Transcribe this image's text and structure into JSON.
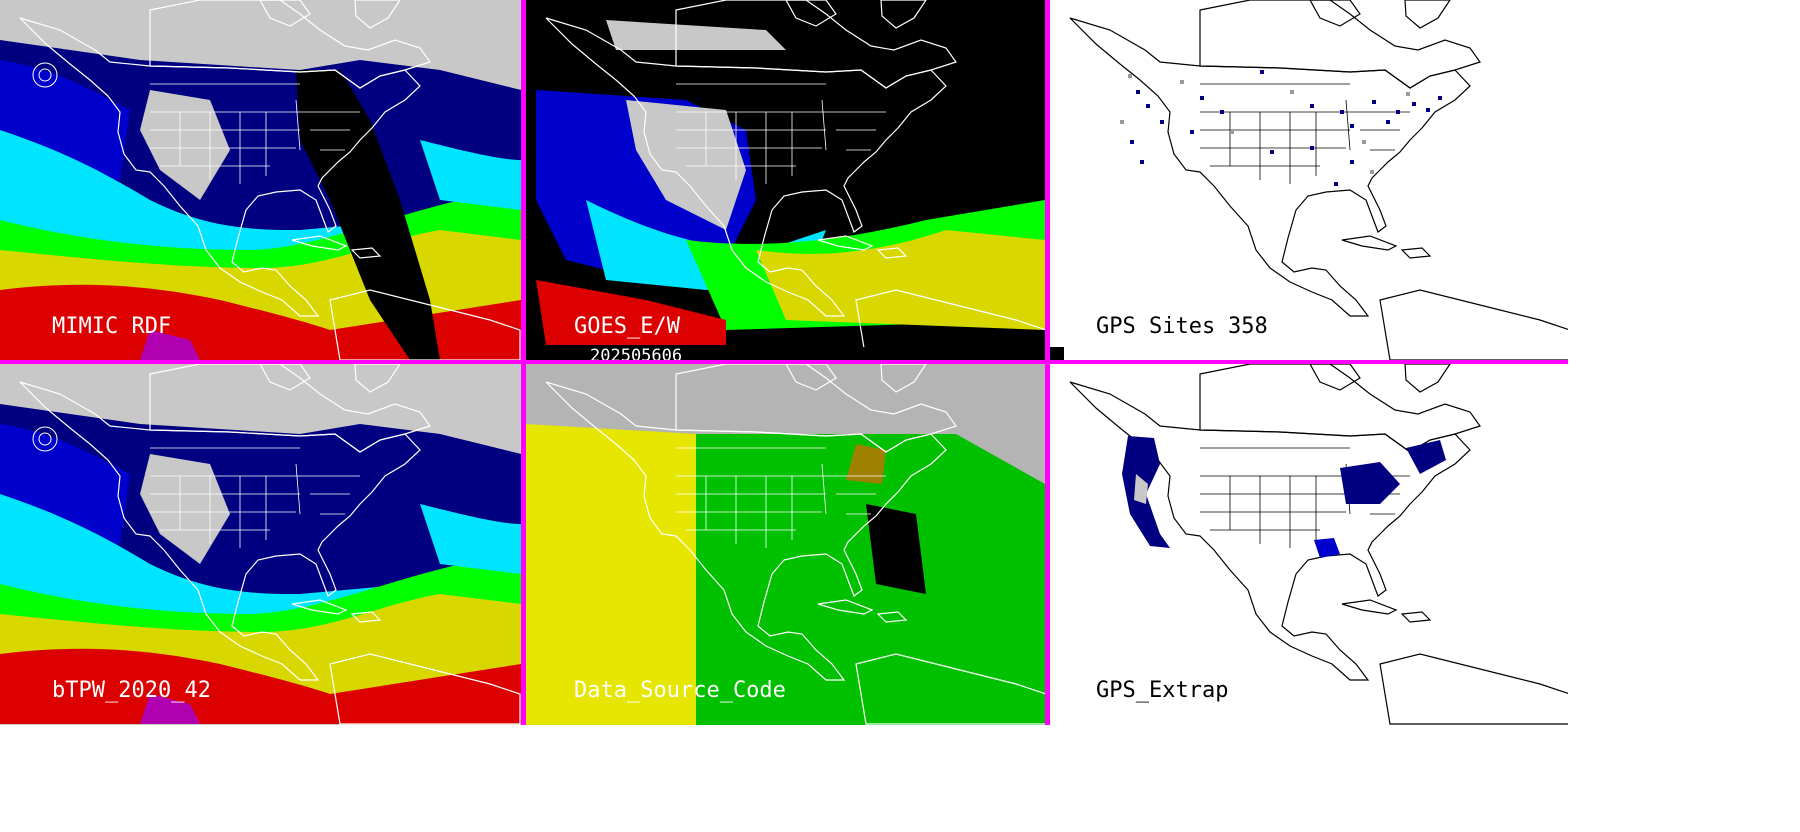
{
  "panels": [
    {
      "id": "mimic",
      "label": "MIMIC RDF"
    },
    {
      "id": "goes",
      "label": "GOES_E/W"
    },
    {
      "id": "gps_sites",
      "label": "GPS Sites",
      "count": "358"
    },
    {
      "id": "btpw",
      "label": "bTPW_2020_42"
    },
    {
      "id": "dsc",
      "label": "Data_Source_Code"
    },
    {
      "id": "gps_extrap",
      "label": "GPS_Extrap"
    }
  ],
  "date": "202505606",
  "colors": {
    "separator": "#ff00ff",
    "coastline_on_dark": "#ffffff",
    "coastline_on_light": "#000000",
    "tpw_scale": [
      "#c8c8c8",
      "#000080",
      "#0000cd",
      "#00e5ff",
      "#00ff00",
      "#d8d800",
      "#dd0000",
      "#b000b0"
    ],
    "dsc_scale": [
      "#b4b4b4",
      "#e6e600",
      "#00c000",
      "#a08000",
      "#000000"
    ]
  }
}
